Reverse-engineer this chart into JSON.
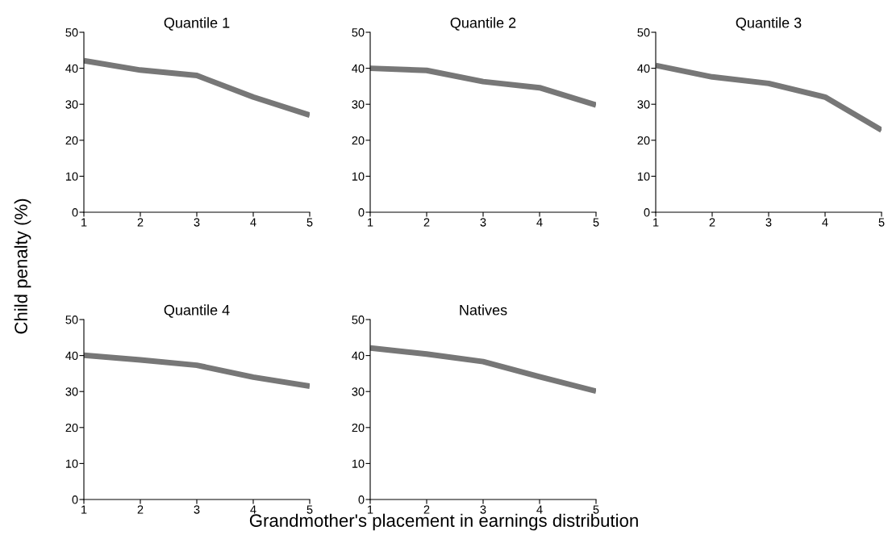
{
  "chart_data": [
    {
      "type": "line",
      "title": "Quantile 1",
      "ylabel": "Child penalty (%)",
      "xlabel": "Grandmother's placement in earnings distribution",
      "x": [
        1,
        2,
        3,
        4,
        5
      ],
      "series": [
        {
          "color": "#777777",
          "values": [
            42.1,
            39.5,
            38,
            32,
            27
          ]
        }
      ],
      "xlim": [
        1,
        5
      ],
      "xticks": [
        1,
        2,
        3,
        4,
        5
      ],
      "ylim": [
        0,
        50
      ],
      "yticks": [
        0,
        10,
        20,
        30,
        40,
        50
      ],
      "grid": false,
      "legend": false
    },
    {
      "type": "line",
      "title": "Quantile 2",
      "x": [
        1,
        2,
        3,
        4,
        5
      ],
      "series": [
        {
          "color": "#777777",
          "values": [
            40,
            39.4,
            36.3,
            34.6,
            29.8
          ]
        }
      ],
      "xlim": [
        1,
        5
      ],
      "xticks": [
        1,
        2,
        3,
        4,
        5
      ],
      "ylim": [
        0,
        50
      ],
      "yticks": [
        0,
        10,
        20,
        30,
        40,
        50
      ],
      "grid": false,
      "legend": false
    },
    {
      "type": "line",
      "title": "Quantile 3",
      "x": [
        1,
        2,
        3,
        4,
        5
      ],
      "series": [
        {
          "color": "#777777",
          "values": [
            40.8,
            37.6,
            35.8,
            32,
            22.8
          ]
        }
      ],
      "xlim": [
        1,
        5
      ],
      "xticks": [
        1,
        2,
        3,
        4,
        5
      ],
      "ylim": [
        0,
        50
      ],
      "yticks": [
        0,
        10,
        20,
        30,
        40,
        50
      ],
      "grid": false,
      "legend": false
    },
    {
      "type": "line",
      "title": "Quantile 4",
      "x": [
        1,
        2,
        3,
        4,
        5
      ],
      "series": [
        {
          "color": "#777777",
          "values": [
            40.1,
            38.8,
            37.3,
            34,
            31.5
          ]
        }
      ],
      "xlim": [
        1,
        5
      ],
      "xticks": [
        1,
        2,
        3,
        4,
        5
      ],
      "ylim": [
        0,
        50
      ],
      "yticks": [
        0,
        10,
        20,
        30,
        40,
        50
      ],
      "grid": false,
      "legend": false
    },
    {
      "type": "line",
      "title": "Natives",
      "x": [
        1,
        2,
        3,
        4,
        5
      ],
      "series": [
        {
          "color": "#777777",
          "values": [
            42.1,
            40.4,
            38.3,
            34.1,
            30.1
          ]
        }
      ],
      "xlim": [
        1,
        5
      ],
      "xticks": [
        1,
        2,
        3,
        4,
        5
      ],
      "ylim": [
        0,
        50
      ],
      "yticks": [
        0,
        10,
        20,
        30,
        40,
        50
      ],
      "grid": false,
      "legend": false
    }
  ]
}
